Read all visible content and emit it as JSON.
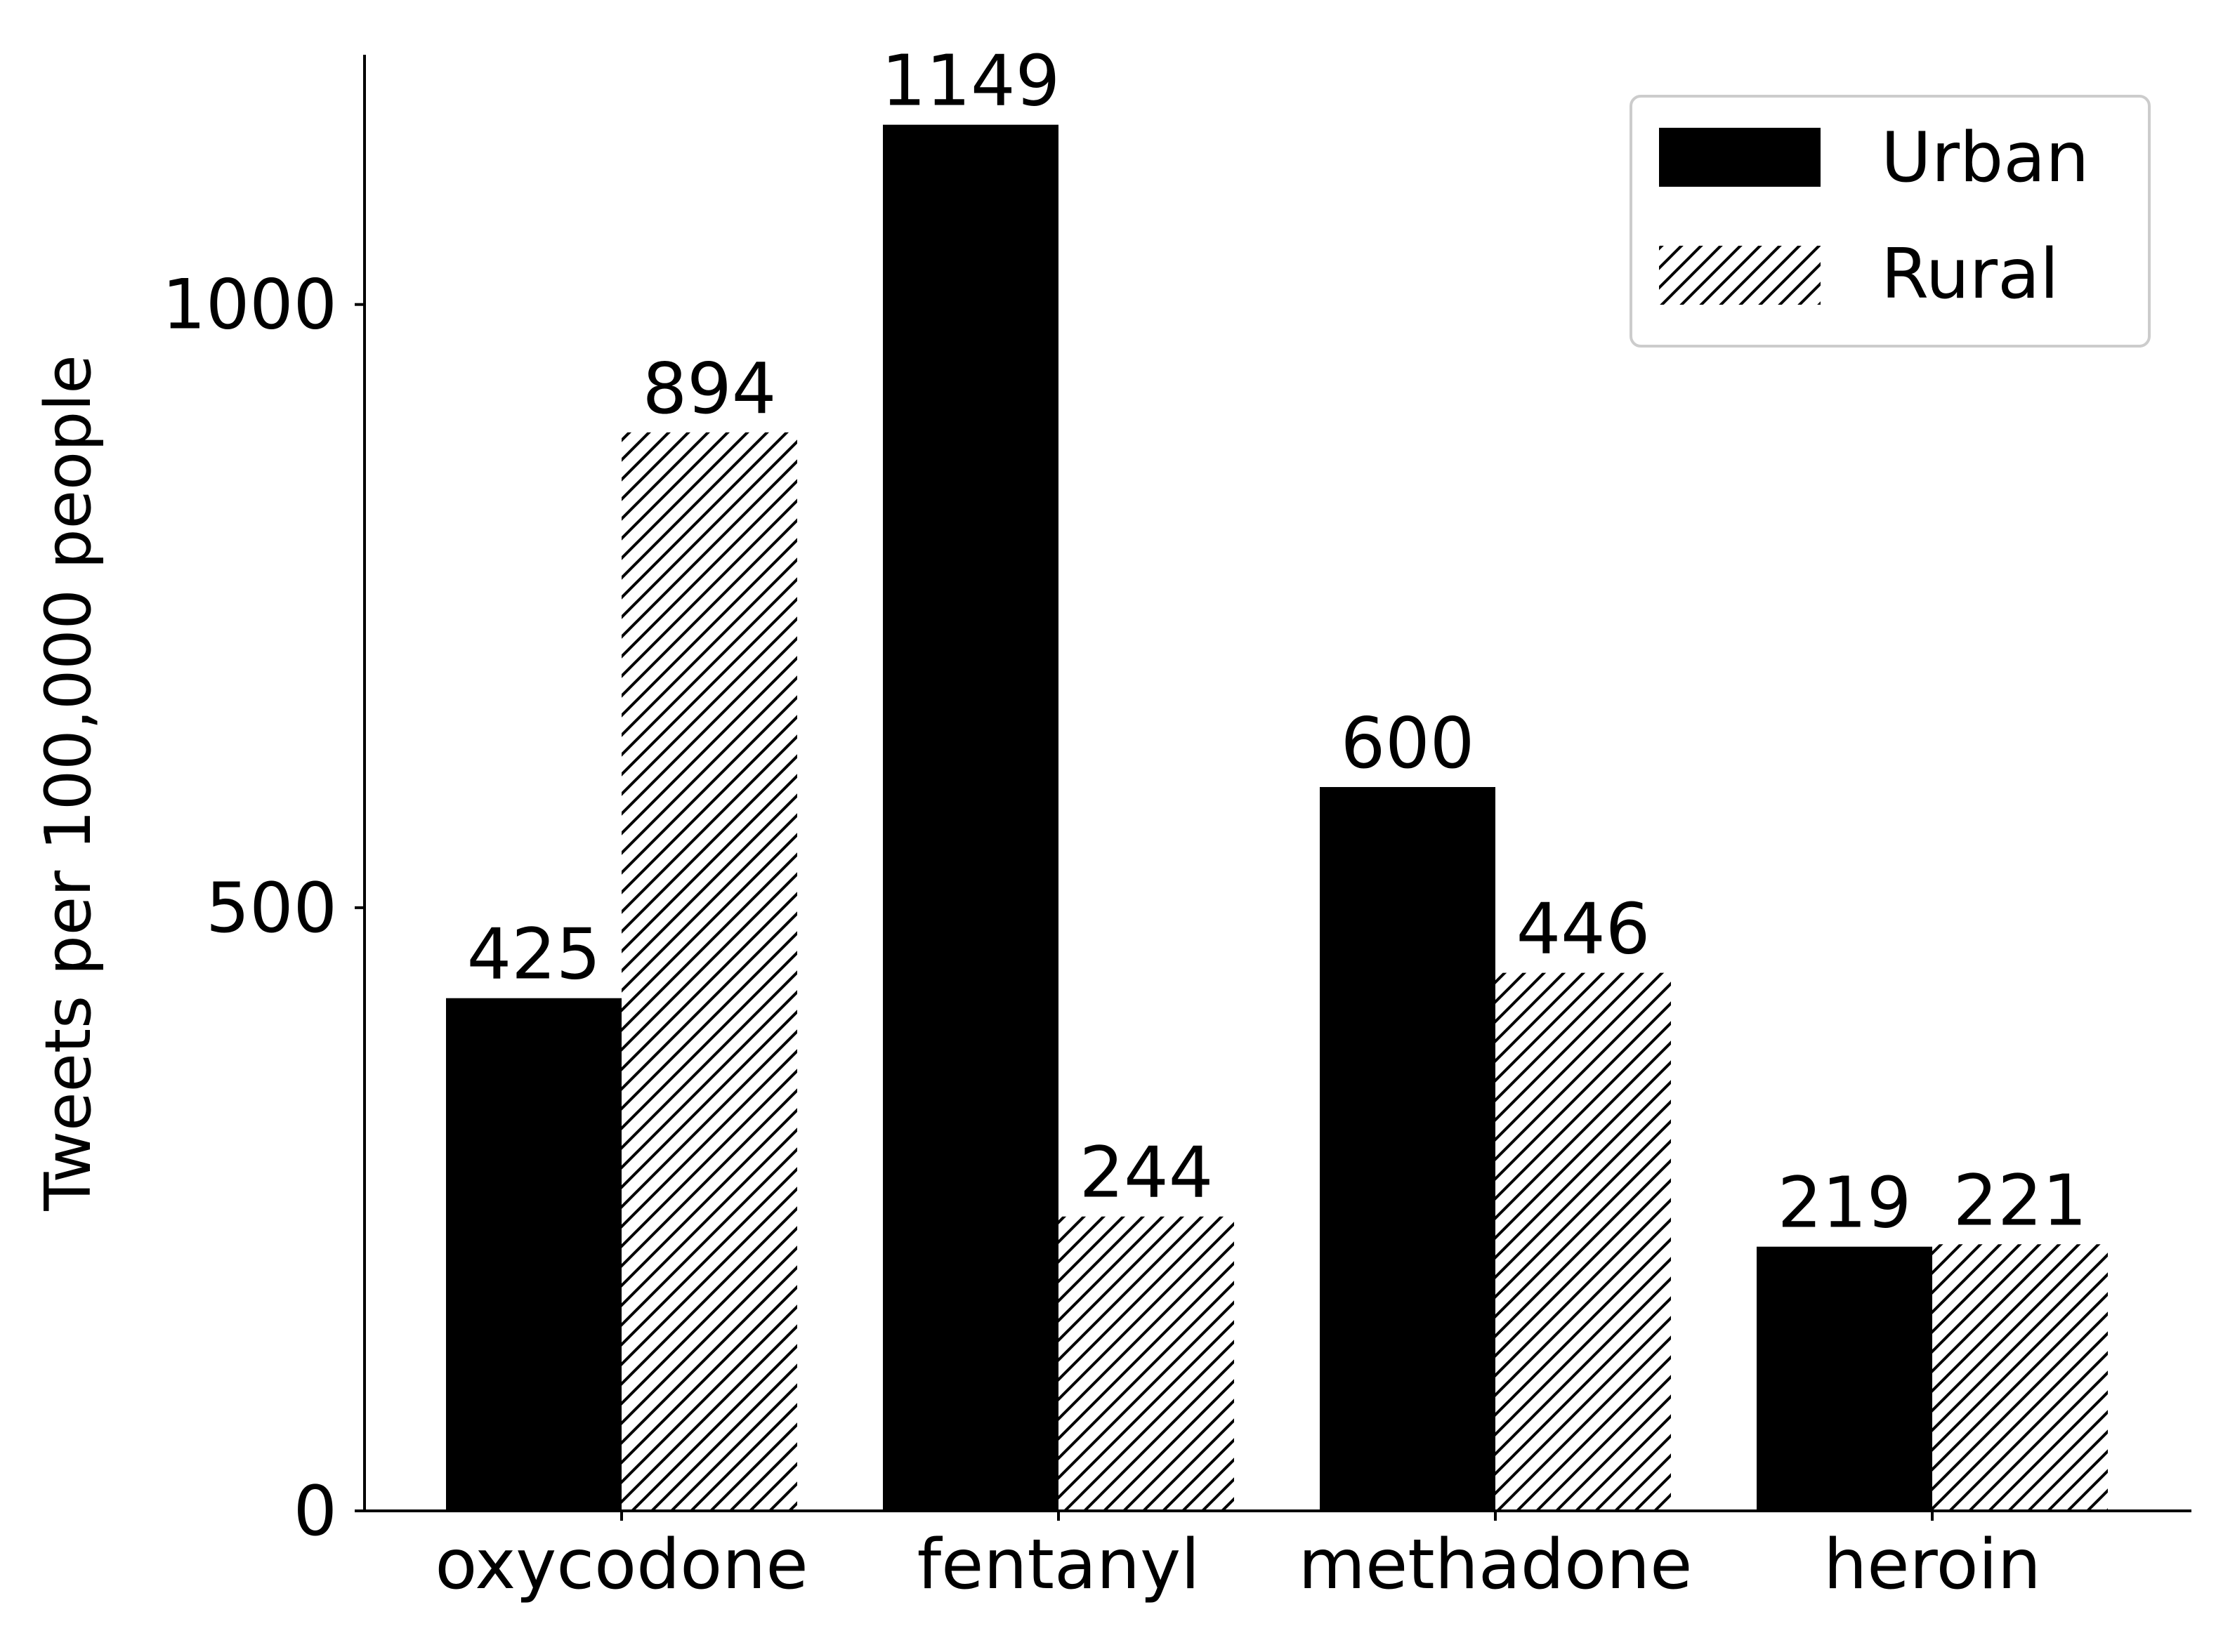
{
  "chart_data": {
    "type": "bar",
    "title": "",
    "xlabel": "",
    "ylabel": "Tweets per 100,000 people",
    "categories": [
      "oxycodone",
      "fentanyl",
      "methadone",
      "heroin"
    ],
    "series": [
      {
        "name": "Urban",
        "values": [
          425,
          1149,
          600,
          219
        ],
        "fill": "solid",
        "color": "#000000"
      },
      {
        "name": "Rural",
        "values": [
          894,
          244,
          446,
          221
        ],
        "fill": "hatched",
        "color": "#000000"
      }
    ],
    "ylim": [
      0,
      1207
    ],
    "yticks": [
      0,
      500,
      1000
    ],
    "grid": false,
    "legend_position": "top-right"
  }
}
